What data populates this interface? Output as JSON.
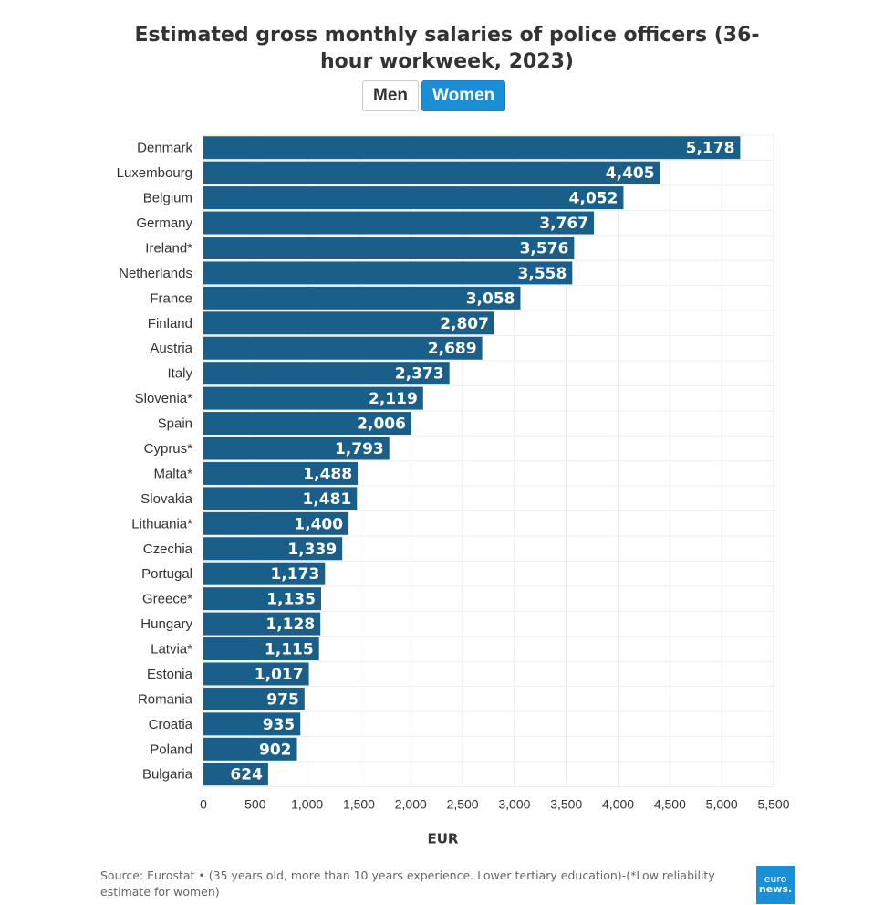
{
  "chart_data": {
    "type": "bar",
    "orientation": "horizontal",
    "title": "Estimated gross monthly salaries of police officers (36-hour workweek, 2023)",
    "xlabel": "EUR",
    "xlim": [
      0,
      5500
    ],
    "xticks": [
      "0",
      "500",
      "1,000",
      "1,500",
      "2,000",
      "2,500",
      "3,000",
      "3,500",
      "4,000",
      "4,500",
      "5,000",
      "5,500"
    ],
    "grid": true,
    "bar_color": "#1a5f8a",
    "categories": [
      "Denmark",
      "Luxembourg",
      "Belgium",
      "Germany",
      "Ireland*",
      "Netherlands",
      "France",
      "Finland",
      "Austria",
      "Italy",
      "Slovenia*",
      "Spain",
      "Cyprus*",
      "Malta*",
      "Slovakia",
      "Lithuania*",
      "Czechia",
      "Portugal",
      "Greece*",
      "Hungary",
      "Latvia*",
      "Estonia",
      "Romania",
      "Croatia",
      "Poland",
      "Bulgaria"
    ],
    "values": [
      5178,
      4405,
      4052,
      3767,
      3576,
      3558,
      3058,
      2807,
      2689,
      2373,
      2119,
      2006,
      1793,
      1488,
      1481,
      1400,
      1339,
      1173,
      1135,
      1128,
      1115,
      1017,
      975,
      935,
      902,
      624
    ]
  },
  "toggle": {
    "options": [
      "Men",
      "Women"
    ],
    "selected": "Women",
    "accent": "#1b8fd6"
  },
  "footer": {
    "source": "Source: Eurostat • (35 years old, more than 10 years experience. Lower tertiary education)-(*Low reliability estimate for women)"
  },
  "logo": {
    "text": "euro news."
  }
}
